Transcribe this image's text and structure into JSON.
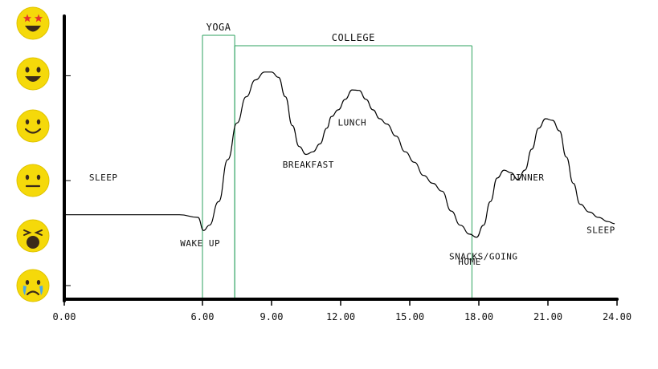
{
  "chart_data": {
    "type": "line",
    "xlim": [
      0,
      24
    ],
    "ylim": [
      1,
      6
    ],
    "x_ticks": [
      {
        "value": 0,
        "label": "0.00"
      },
      {
        "value": 6,
        "label": "6.00"
      },
      {
        "value": 9,
        "label": "9.00"
      },
      {
        "value": 12,
        "label": "12.00"
      },
      {
        "value": 15,
        "label": "15.00"
      },
      {
        "value": 18,
        "label": "18.00"
      },
      {
        "value": 21,
        "label": "21.00"
      },
      {
        "value": 24,
        "label": "24.00"
      }
    ],
    "y_levels": [
      {
        "value": 6,
        "icon": "star-struck-face-icon"
      },
      {
        "value": 5,
        "icon": "grinning-face-icon"
      },
      {
        "value": 4,
        "icon": "smiling-face-icon"
      },
      {
        "value": 3,
        "icon": "neutral-face-icon"
      },
      {
        "value": 2,
        "icon": "tired-face-icon"
      },
      {
        "value": 1,
        "icon": "crying-face-icon"
      }
    ],
    "y_tick_values": [
      5,
      3,
      1
    ],
    "series": [
      {
        "color": "#000000",
        "x": [
          0,
          1,
          2,
          3,
          4,
          5,
          5.8,
          6.05,
          6.3,
          6.7,
          7.1,
          7.5,
          7.9,
          8.3,
          8.7,
          9.0,
          9.3,
          9.6,
          9.9,
          10.2,
          10.5,
          10.8,
          11.1,
          11.4,
          11.6,
          11.9,
          12.2,
          12.5,
          12.8,
          13.1,
          13.4,
          13.7,
          14.0,
          14.4,
          14.8,
          15.2,
          15.6,
          16.0,
          16.4,
          16.8,
          17.2,
          17.6,
          17.9,
          18.2,
          18.5,
          18.8,
          19.1,
          19.4,
          19.7,
          20.0,
          20.3,
          20.6,
          20.9,
          21.2,
          21.5,
          21.8,
          22.1,
          22.4,
          22.8,
          23.2,
          23.6,
          23.9
        ],
        "y": [
          2.35,
          2.35,
          2.35,
          2.35,
          2.35,
          2.35,
          2.3,
          2.05,
          2.15,
          2.6,
          3.4,
          4.1,
          4.6,
          4.92,
          5.07,
          5.07,
          4.97,
          4.6,
          4.05,
          3.65,
          3.5,
          3.55,
          3.7,
          4.0,
          4.22,
          4.35,
          4.55,
          4.73,
          4.72,
          4.55,
          4.35,
          4.18,
          4.08,
          3.85,
          3.55,
          3.35,
          3.1,
          2.95,
          2.8,
          2.42,
          2.15,
          1.98,
          1.92,
          2.15,
          2.6,
          3.05,
          3.2,
          3.15,
          3.02,
          3.2,
          3.6,
          4.0,
          4.18,
          4.15,
          3.95,
          3.45,
          2.95,
          2.55,
          2.4,
          2.3,
          2.22,
          2.18
        ]
      }
    ],
    "bands": [
      {
        "label": "YOGA",
        "start": 6.0,
        "end": 7.4,
        "color": "#2ca25f"
      },
      {
        "label": "COLLEGE",
        "start": 7.4,
        "end": 17.7,
        "color": "#2ca25f"
      }
    ],
    "annotations": [
      {
        "text": "SLEEP",
        "x": 1.7,
        "y": 3.0
      },
      {
        "text": "WAKE UP",
        "x": 5.9,
        "y": 1.75
      },
      {
        "text": "BREAKFAST",
        "x": 10.6,
        "y": 3.25
      },
      {
        "text": "LUNCH",
        "x": 12.5,
        "y": 4.05
      },
      {
        "text": "SNACKS/GOING",
        "x": 18.2,
        "y": 1.5
      },
      {
        "text": "HOME",
        "x": 17.6,
        "y": 1.4
      },
      {
        "text": "DINNER",
        "x": 20.1,
        "y": 3.0
      },
      {
        "text": "SLEEP",
        "x": 23.3,
        "y": 2.0
      }
    ],
    "grid": false
  }
}
